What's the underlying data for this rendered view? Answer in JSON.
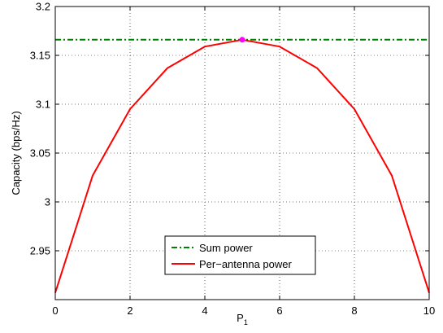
{
  "chart_data": {
    "type": "line",
    "title": "",
    "xlabel": "P",
    "xlabel_subscript": "1",
    "ylabel": "Capacity (bps/Hz)",
    "xlim": [
      0,
      10
    ],
    "ylim": [
      2.9,
      3.2
    ],
    "grid": true,
    "legend_position": "bottom-center",
    "x_ticks": [
      "0",
      "2",
      "4",
      "6",
      "8",
      "10"
    ],
    "y_ticks": [
      "2.95",
      "3",
      "3.05",
      "3.1",
      "3.15",
      "3.2"
    ],
    "series": [
      {
        "name": "Sum power",
        "style": "dash-dot",
        "color": "#008000",
        "x": [
          0,
          10
        ],
        "values": [
          3.166,
          3.166
        ]
      },
      {
        "name": "Per−antenna power",
        "style": "solid",
        "color": "#ff0000",
        "x": [
          0,
          1,
          2,
          3,
          4,
          5,
          6,
          7,
          8,
          9,
          10
        ],
        "values": [
          2.907,
          3.027,
          3.095,
          3.137,
          3.159,
          3.166,
          3.159,
          3.137,
          3.095,
          3.027,
          2.907
        ]
      }
    ],
    "highlight_point": {
      "x": 5,
      "y": 3.166,
      "color": "#ff00ff"
    }
  }
}
